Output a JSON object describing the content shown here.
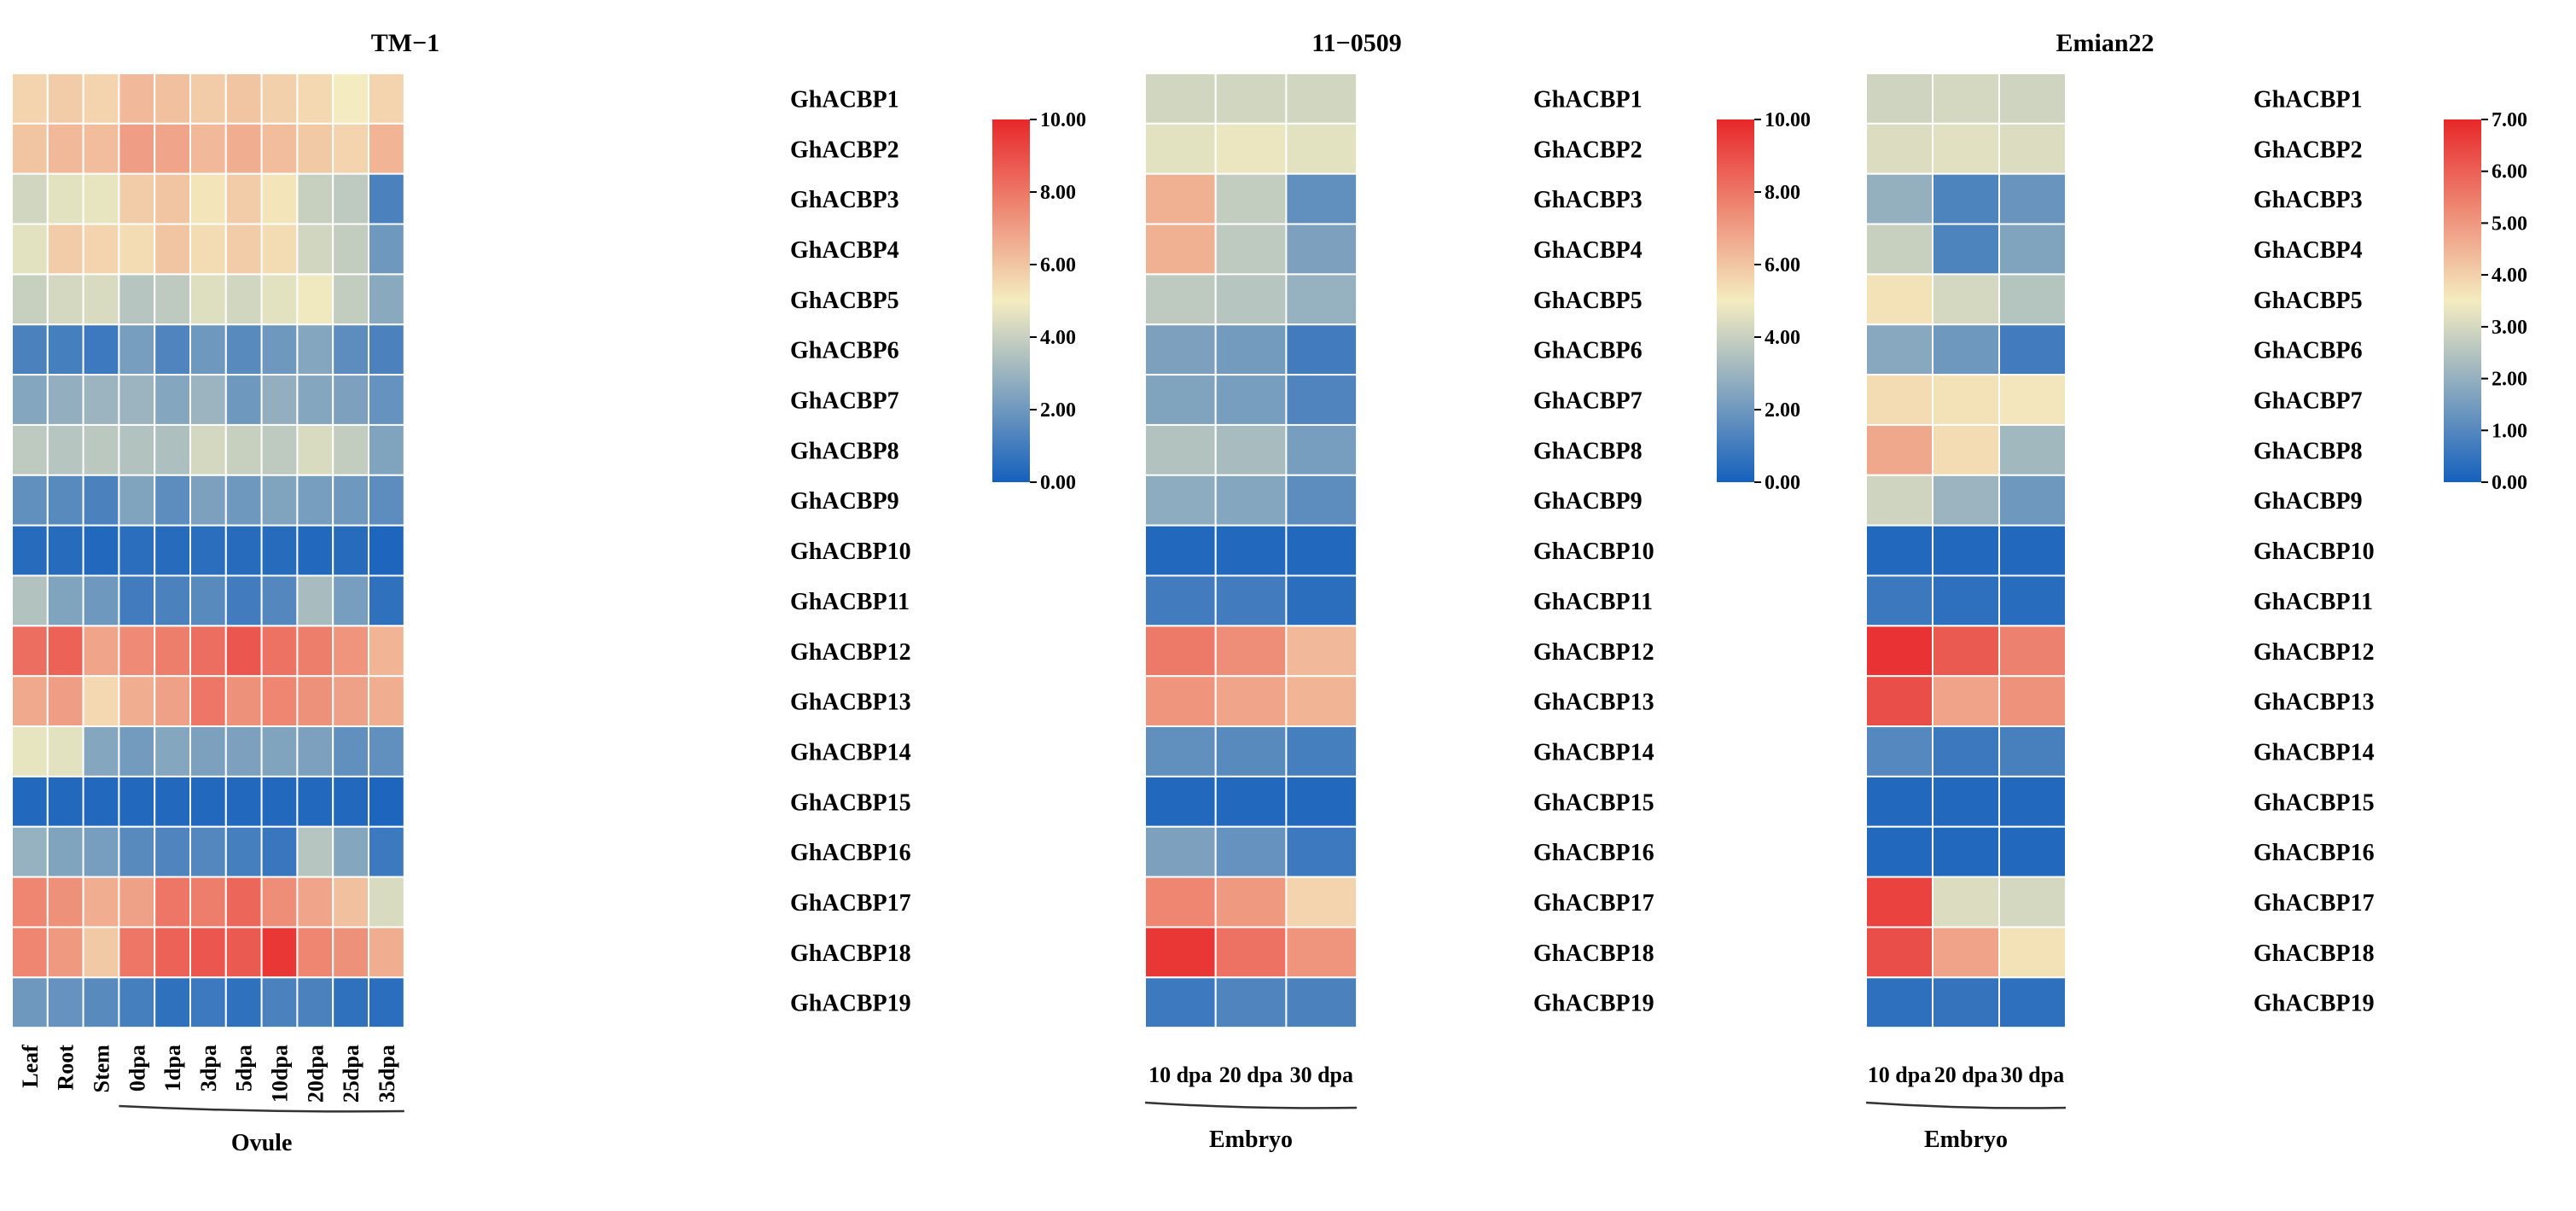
{
  "rows": [
    "GhACBP1",
    "GhACBP2",
    "GhACBP3",
    "GhACBP4",
    "GhACBP5",
    "GhACBP6",
    "GhACBP7",
    "GhACBP8",
    "GhACBP9",
    "GhACBP10",
    "GhACBP11",
    "GhACBP12",
    "GhACBP13",
    "GhACBP14",
    "GhACBP15",
    "GhACBP16",
    "GhACBP17",
    "GhACBP18",
    "GhACBP19"
  ],
  "colors": {
    "low": "#1560bd",
    "mid": "#f4ecc0",
    "high": "#e8272a",
    "cell_border": "#ffffff"
  },
  "chart_data": [
    {
      "type": "heatmap",
      "title": "TM−1",
      "columns": [
        "Leaf",
        "Root",
        "Stem",
        "0dpa",
        "1dpa",
        "3dpa",
        "5dpa",
        "10dpa",
        "20dpa",
        "25dpa",
        "35dpa"
      ],
      "group_label": "Ovule",
      "group_columns": [
        "0dpa",
        "1dpa",
        "3dpa",
        "5dpa",
        "10dpa",
        "20dpa",
        "25dpa",
        "35dpa"
      ],
      "colorbar": {
        "min": 0,
        "max": 10,
        "ticks": [
          "0.00",
          "2.00",
          "4.00",
          "6.00",
          "8.00",
          "10.00"
        ]
      },
      "values": [
        [
          5.6,
          5.8,
          5.6,
          6.3,
          6.1,
          5.8,
          6.0,
          5.7,
          5.5,
          5.0,
          5.6
        ],
        [
          6.0,
          6.3,
          6.2,
          7.0,
          6.8,
          6.3,
          6.6,
          6.2,
          5.9,
          5.6,
          6.4
        ],
        [
          4.2,
          4.6,
          4.7,
          5.8,
          6.0,
          5.2,
          5.8,
          5.2,
          4.0,
          3.8,
          1.2
        ],
        [
          4.6,
          5.8,
          5.6,
          5.4,
          6.0,
          5.4,
          5.8,
          5.4,
          4.2,
          3.9,
          2.0
        ],
        [
          4.0,
          4.3,
          4.4,
          3.6,
          3.8,
          4.5,
          4.2,
          4.6,
          4.9,
          3.9,
          2.6
        ],
        [
          1.2,
          1.1,
          0.9,
          2.2,
          1.3,
          2.0,
          1.5,
          2.0,
          2.5,
          1.6,
          1.2
        ],
        [
          2.5,
          2.8,
          3.0,
          3.0,
          2.5,
          3.0,
          2.0,
          2.8,
          2.5,
          2.3,
          1.8
        ],
        [
          3.8,
          3.6,
          3.7,
          3.5,
          3.4,
          4.3,
          4.0,
          3.8,
          4.4,
          3.9,
          2.4
        ],
        [
          1.7,
          1.5,
          1.2,
          2.4,
          1.6,
          2.3,
          2.0,
          2.4,
          2.2,
          2.0,
          1.6
        ],
        [
          0.4,
          0.4,
          0.3,
          0.5,
          0.4,
          0.5,
          0.4,
          0.4,
          0.3,
          0.4,
          0.2
        ],
        [
          3.5,
          2.4,
          2.0,
          1.0,
          1.2,
          1.5,
          1.0,
          1.4,
          3.3,
          2.2,
          0.6
        ],
        [
          8.2,
          8.5,
          6.8,
          7.5,
          7.8,
          8.2,
          8.8,
          8.1,
          7.8,
          7.2,
          6.4
        ],
        [
          6.7,
          7.0,
          5.5,
          6.6,
          6.9,
          8.0,
          7.3,
          7.6,
          7.3,
          6.9,
          6.6
        ],
        [
          4.7,
          4.6,
          2.5,
          2.1,
          2.5,
          2.3,
          2.3,
          2.4,
          2.3,
          1.7,
          1.7
        ],
        [
          0.3,
          0.3,
          0.3,
          0.3,
          0.3,
          0.3,
          0.3,
          0.3,
          0.3,
          0.3,
          0.2
        ],
        [
          2.9,
          2.4,
          2.2,
          1.5,
          1.3,
          1.4,
          1.1,
          0.8,
          3.6,
          2.5,
          0.9
        ],
        [
          7.6,
          7.3,
          6.6,
          6.9,
          8.0,
          7.8,
          8.4,
          7.4,
          6.8,
          6.1,
          4.4
        ],
        [
          7.6,
          7.1,
          5.9,
          8.0,
          8.5,
          8.8,
          8.7,
          9.6,
          7.6,
          7.3,
          6.6
        ],
        [
          2.0,
          1.8,
          1.5,
          1.1,
          0.6,
          0.9,
          0.6,
          1.2,
          1.2,
          0.6,
          0.5
        ]
      ]
    },
    {
      "type": "heatmap",
      "title": "11−0509",
      "columns": [
        "10 dpa",
        "20 dpa",
        "30 dpa"
      ],
      "group_label": "Embryo",
      "group_columns": [
        "10 dpa",
        "20 dpa",
        "30 dpa"
      ],
      "colorbar": {
        "min": 0,
        "max": 10,
        "ticks": [
          "0.00",
          "2.00",
          "4.00",
          "6.00",
          "8.00",
          "10.00"
        ]
      },
      "values": [
        [
          4.2,
          4.2,
          4.2
        ],
        [
          4.6,
          4.8,
          4.6
        ],
        [
          6.5,
          3.9,
          1.7
        ],
        [
          6.5,
          3.8,
          2.3
        ],
        [
          3.8,
          3.6,
          2.9
        ],
        [
          2.3,
          2.1,
          1.0
        ],
        [
          2.4,
          2.2,
          1.3
        ],
        [
          3.5,
          3.3,
          2.2
        ],
        [
          2.7,
          2.5,
          1.6
        ],
        [
          0.3,
          0.3,
          0.3
        ],
        [
          1.0,
          1.0,
          0.5
        ],
        [
          7.9,
          7.4,
          6.3
        ],
        [
          7.2,
          6.8,
          6.4
        ],
        [
          1.7,
          1.5,
          1.1
        ],
        [
          0.3,
          0.3,
          0.3
        ],
        [
          2.3,
          1.8,
          0.9
        ],
        [
          7.6,
          7.1,
          5.6
        ],
        [
          9.6,
          8.1,
          7.2
        ],
        [
          0.9,
          1.3,
          1.2
        ]
      ]
    },
    {
      "type": "heatmap",
      "title": "Emian22",
      "columns": [
        "10 dpa",
        "20 dpa",
        "30 dpa"
      ],
      "group_label": "Embryo",
      "group_columns": [
        "10 dpa",
        "20 dpa",
        "30 dpa"
      ],
      "colorbar": {
        "min": 0,
        "max": 7,
        "ticks": [
          "0.00",
          "1.00",
          "2.00",
          "3.00",
          "4.00",
          "5.00",
          "6.00",
          "7.00"
        ]
      },
      "values": [
        [
          2.9,
          3.0,
          2.9
        ],
        [
          3.1,
          3.2,
          3.1
        ],
        [
          2.0,
          0.9,
          1.3
        ],
        [
          2.8,
          0.9,
          1.7
        ],
        [
          3.7,
          3.0,
          2.5
        ],
        [
          1.8,
          1.4,
          0.7
        ],
        [
          3.8,
          3.7,
          3.6
        ],
        [
          4.7,
          3.8,
          2.2
        ],
        [
          2.9,
          2.1,
          1.4
        ],
        [
          0.2,
          0.2,
          0.2
        ],
        [
          0.6,
          0.4,
          0.3
        ],
        [
          6.8,
          6.1,
          5.4
        ],
        [
          6.3,
          4.8,
          5.1
        ],
        [
          1.0,
          0.6,
          0.8
        ],
        [
          0.2,
          0.2,
          0.2
        ],
        [
          0.2,
          0.2,
          0.2
        ],
        [
          6.5,
          3.1,
          3.0
        ],
        [
          6.3,
          4.8,
          3.7
        ],
        [
          0.4,
          0.5,
          0.4
        ]
      ]
    }
  ]
}
